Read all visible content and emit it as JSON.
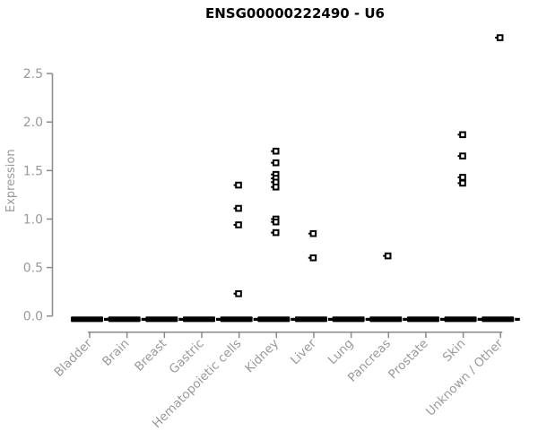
{
  "chart_data": {
    "type": "scatter",
    "title": "ENSG00000222490 - U6",
    "xlabel": "",
    "ylabel": "Expression",
    "ylim": [
      0,
      2.5
    ],
    "yticks": [
      "0.0",
      "0.5",
      "1.0",
      "1.5",
      "2.0",
      "2.5"
    ],
    "grid": false,
    "legend_position": "none",
    "categories": [
      "Bladder",
      "Brain",
      "Breast",
      "Gastric",
      "Hematopoietic cells",
      "Kidney",
      "Liver",
      "Lung",
      "Pancreas",
      "Prostate",
      "Skin",
      "Unknown / Other"
    ],
    "groups": [
      {
        "label": "Bladder",
        "points": [],
        "zero_cluster": true
      },
      {
        "label": "Brain",
        "points": [],
        "zero_cluster": true
      },
      {
        "label": "Breast",
        "points": [],
        "zero_cluster": true
      },
      {
        "label": "Gastric",
        "points": [],
        "zero_cluster": true
      },
      {
        "label": "Hematopoietic cells",
        "points": [
          1.35,
          1.11,
          0.94,
          0.23
        ],
        "zero_cluster": true
      },
      {
        "label": "Kidney",
        "points": [
          1.7,
          1.58,
          1.46,
          1.42,
          1.38,
          1.33,
          1.0,
          0.97,
          0.86
        ],
        "zero_cluster": true
      },
      {
        "label": "Liver",
        "points": [
          0.85,
          0.6
        ],
        "zero_cluster": true
      },
      {
        "label": "Lung",
        "points": [],
        "zero_cluster": true
      },
      {
        "label": "Pancreas",
        "points": [
          0.62
        ],
        "zero_cluster": true
      },
      {
        "label": "Prostate",
        "points": [],
        "zero_cluster": true
      },
      {
        "label": "Skin",
        "points": [
          1.87,
          1.65,
          1.43,
          1.37
        ],
        "zero_cluster": true
      },
      {
        "label": "Unknown / Other",
        "points": [
          2.87
        ],
        "zero_cluster": true
      }
    ],
    "colors": {
      "marker": "#000000",
      "axis": "#8a8a8a",
      "tick_label": "#9a9a9a",
      "title": "#000000",
      "background": "#ffffff"
    }
  }
}
